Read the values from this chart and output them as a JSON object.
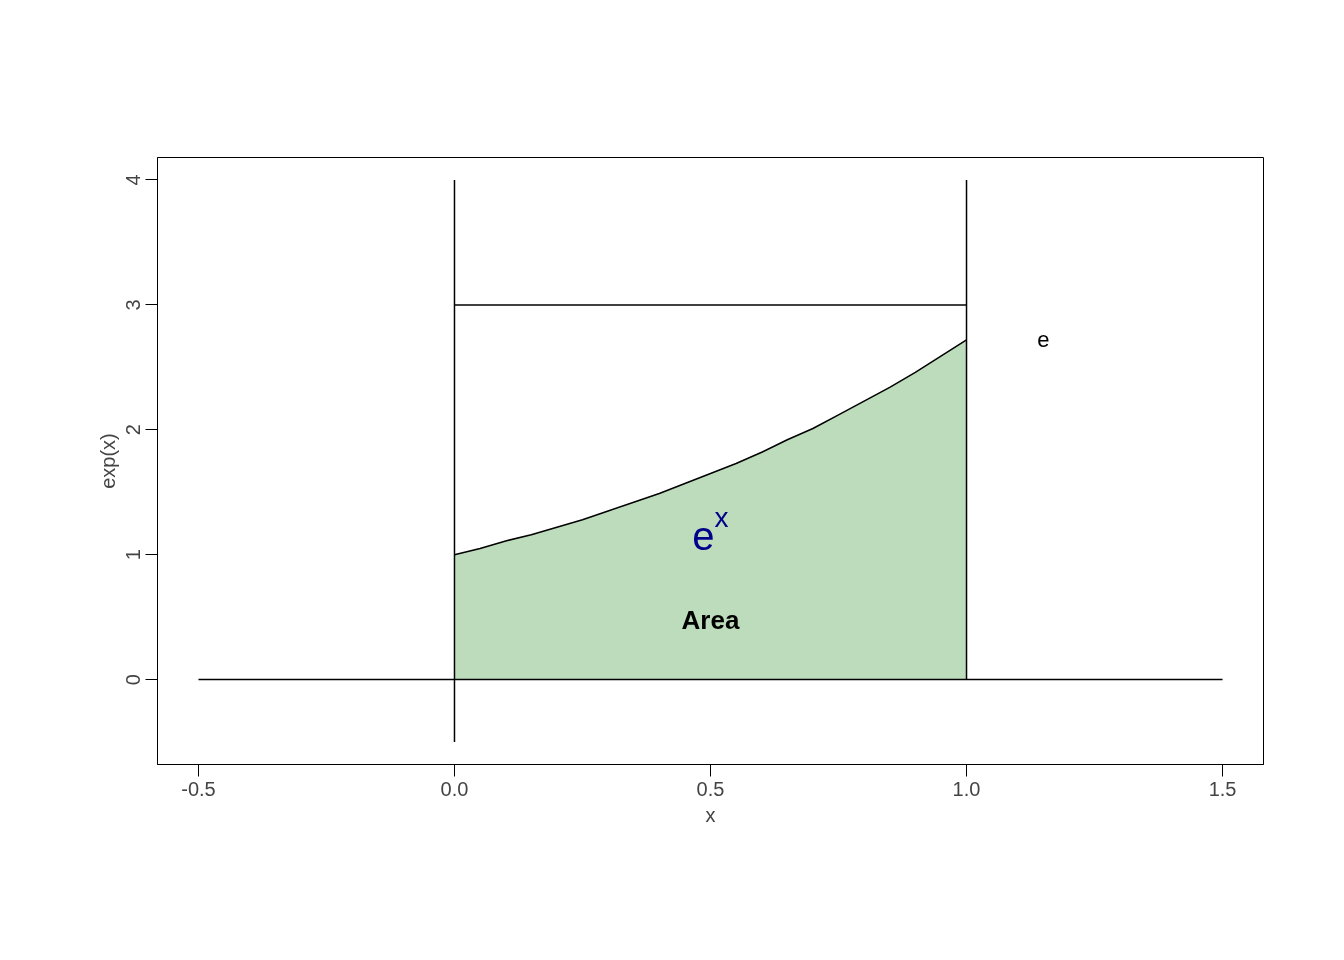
{
  "chart_data": {
    "type": "area",
    "xlabel": "x",
    "ylabel": "exp(x)",
    "series": [
      {
        "color": "#bcdcbc",
        "x": [
          0,
          0.05,
          0.1,
          0.15,
          0.2,
          0.25,
          0.3,
          0.35,
          0.4,
          0.45,
          0.5,
          0.55,
          0.6,
          0.65,
          0.7,
          0.75,
          0.8,
          0.85,
          0.9,
          0.95,
          1.0
        ],
        "values": [
          1.0,
          1.05,
          1.11,
          1.16,
          1.22,
          1.28,
          1.35,
          1.42,
          1.49,
          1.57,
          1.65,
          1.73,
          1.82,
          1.92,
          2.01,
          2.12,
          2.23,
          2.34,
          2.46,
          2.59,
          2.72
        ]
      },
      {
        "type": "line",
        "color": "#000000",
        "x": [
          -0.5,
          1.5
        ],
        "values": [
          0,
          0
        ]
      },
      {
        "type": "line",
        "color": "#000000",
        "x": [
          0,
          0
        ],
        "values": [
          -0.5,
          4
        ]
      },
      {
        "type": "line",
        "color": "#000000",
        "x": [
          1,
          1
        ],
        "values": [
          0,
          4
        ]
      },
      {
        "type": "line",
        "color": "#000000",
        "x": [
          0,
          1
        ],
        "values": [
          3,
          3
        ]
      }
    ],
    "annotations": [
      "Area",
      "e$^{x}$",
      "e"
    ],
    "xlim": [
      -0.58,
      1.58
    ],
    "ylim": [
      -0.68,
      4.18
    ],
    "xticks": [
      {
        "value": -0.5,
        "label": "-0.5"
      },
      {
        "value": 0,
        "label": "0.0"
      },
      {
        "value": 0.5,
        "label": "0.5"
      },
      {
        "value": 1,
        "label": "1.0"
      },
      {
        "value": 1.5,
        "label": "1.5"
      }
    ],
    "yticks": [
      0,
      1,
      2,
      3,
      4
    ],
    "grid": false
  }
}
